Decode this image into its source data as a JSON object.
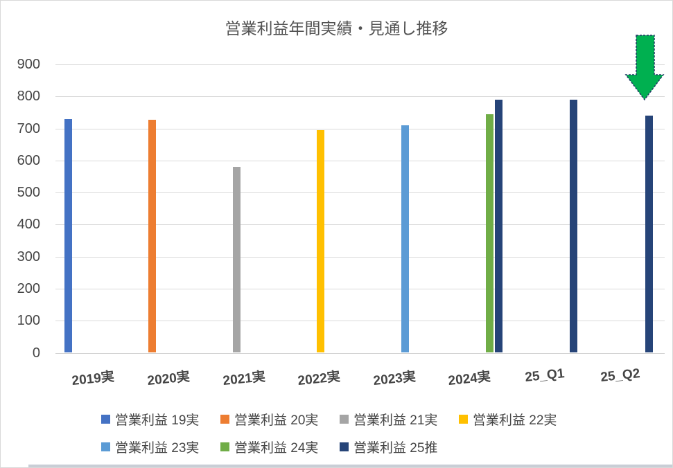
{
  "chart_data": {
    "type": "bar",
    "title": "営業利益年間実績・見通し推移",
    "categories": [
      "2019実",
      "2020実",
      "2021実",
      "2022実",
      "2023実",
      "2024実",
      "25_Q1",
      "25_Q2"
    ],
    "series": [
      {
        "name": "営業利益 19実",
        "color": "#4472C4",
        "values": [
          730,
          null,
          null,
          null,
          null,
          null,
          null,
          null
        ]
      },
      {
        "name": "営業利益 20実",
        "color": "#ED7D31",
        "values": [
          null,
          728,
          null,
          null,
          null,
          null,
          null,
          null
        ]
      },
      {
        "name": "営業利益 21実",
        "color": "#A5A5A5",
        "values": [
          null,
          null,
          580,
          null,
          null,
          null,
          null,
          null
        ]
      },
      {
        "name": "営業利益 22実",
        "color": "#FFC000",
        "values": [
          null,
          null,
          null,
          695,
          null,
          null,
          null,
          null
        ]
      },
      {
        "name": "営業利益 23実",
        "color": "#5B9BD5",
        "values": [
          null,
          null,
          null,
          null,
          710,
          null,
          null,
          null
        ]
      },
      {
        "name": "営業利益 24実",
        "color": "#70AD47",
        "values": [
          null,
          null,
          null,
          null,
          null,
          745,
          null,
          null
        ]
      },
      {
        "name": "営業利益 25推",
        "color": "#264478",
        "values": [
          null,
          null,
          null,
          null,
          null,
          790,
          790,
          740
        ]
      }
    ],
    "ylim": [
      0,
      900
    ],
    "yticks": [
      0,
      100,
      200,
      300,
      400,
      500,
      600,
      700,
      800,
      900
    ],
    "grid": true,
    "legend_position": "bottom",
    "legend_rows": [
      [
        0,
        1,
        2,
        3
      ],
      [
        4,
        5,
        6
      ]
    ],
    "annotation": {
      "shape": "down-arrow",
      "fill": "#00B050",
      "outline": "#1F3864",
      "outline_style": "dashed",
      "above_category": "25_Q2"
    }
  }
}
